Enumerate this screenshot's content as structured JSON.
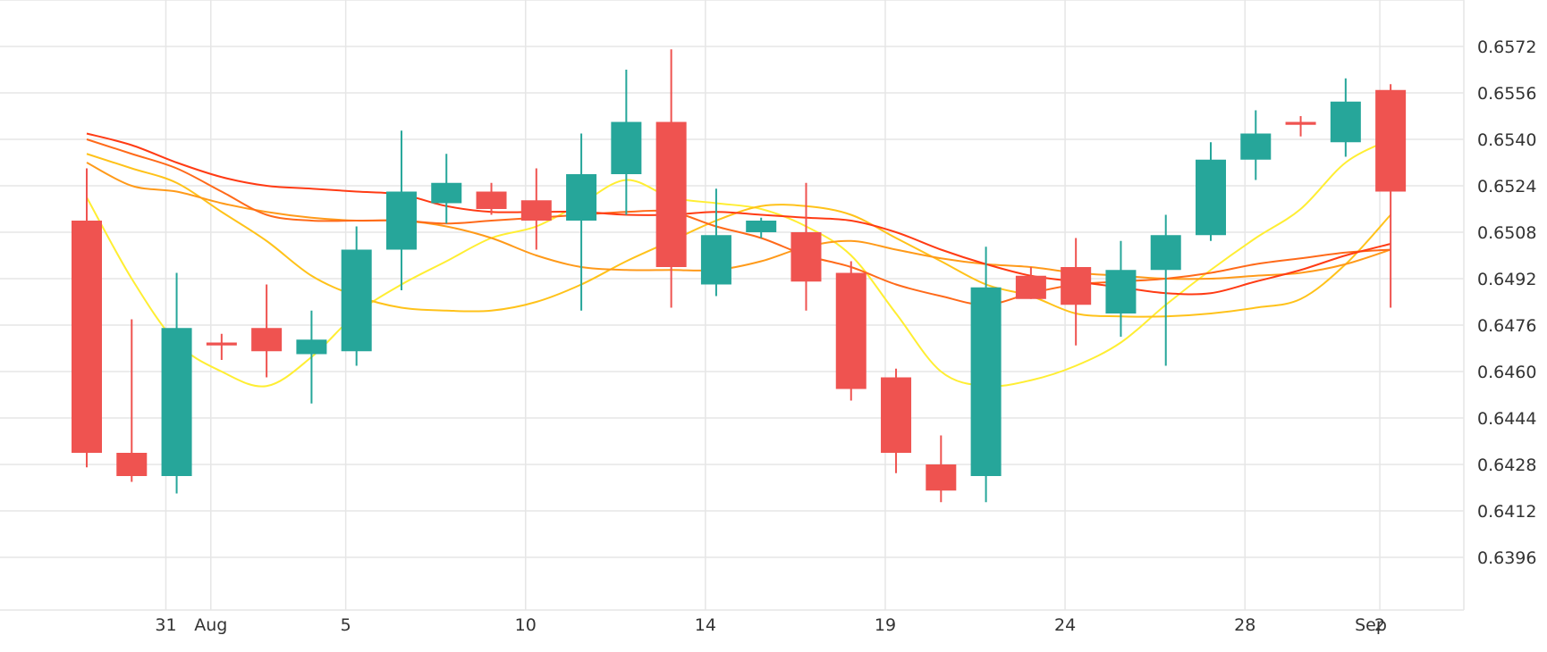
{
  "chart_data": {
    "type": "candlestick",
    "grid": true,
    "y_axis": {
      "position": "right",
      "range": [
        0.638,
        0.6588
      ],
      "ticks": [
        "0.6572",
        "0.6556",
        "0.6540",
        "0.6524",
        "0.6508",
        "0.6492",
        "0.6476",
        "0.6460",
        "0.6444",
        "0.6428",
        "0.6412",
        "0.6396"
      ]
    },
    "x_axis": {
      "labels": [
        {
          "text": "31",
          "index": 1
        },
        {
          "text": "Aug",
          "index": 2
        },
        {
          "text": "5",
          "index": 5
        },
        {
          "text": "10",
          "index": 9
        },
        {
          "text": "14",
          "index": 13
        },
        {
          "text": "19",
          "index": 17
        },
        {
          "text": "24",
          "index": 21
        },
        {
          "text": "28",
          "index": 25
        },
        {
          "text": "Sep",
          "index": 27.8
        },
        {
          "text": "2",
          "index": 28
        }
      ]
    },
    "colors": {
      "up": "#26a69a",
      "down": "#ef5350",
      "grid": "#e6e6e6",
      "text": "#333333"
    },
    "candles": [
      {
        "open": 0.6512,
        "high": 0.653,
        "low": 0.6427,
        "close": 0.6432
      },
      {
        "open": 0.6432,
        "high": 0.6478,
        "low": 0.6422,
        "close": 0.6424
      },
      {
        "open": 0.6424,
        "high": 0.6494,
        "low": 0.6418,
        "close": 0.6475
      },
      {
        "open": 0.647,
        "high": 0.6473,
        "low": 0.6464,
        "close": 0.6469
      },
      {
        "open": 0.6475,
        "high": 0.649,
        "low": 0.6458,
        "close": 0.6467
      },
      {
        "open": 0.6466,
        "high": 0.6481,
        "low": 0.6449,
        "close": 0.6471
      },
      {
        "open": 0.6467,
        "high": 0.651,
        "low": 0.6462,
        "close": 0.6502
      },
      {
        "open": 0.6502,
        "high": 0.6543,
        "low": 0.6488,
        "close": 0.6522
      },
      {
        "open": 0.6518,
        "high": 0.6535,
        "low": 0.6511,
        "close": 0.6525
      },
      {
        "open": 0.6522,
        "high": 0.6525,
        "low": 0.6514,
        "close": 0.6516
      },
      {
        "open": 0.6519,
        "high": 0.653,
        "low": 0.6502,
        "close": 0.6512
      },
      {
        "open": 0.6512,
        "high": 0.6542,
        "low": 0.6481,
        "close": 0.6528
      },
      {
        "open": 0.6528,
        "high": 0.6564,
        "low": 0.6514,
        "close": 0.6546
      },
      {
        "open": 0.6546,
        "high": 0.6571,
        "low": 0.6482,
        "close": 0.6496
      },
      {
        "open": 0.649,
        "high": 0.6523,
        "low": 0.6486,
        "close": 0.6507
      },
      {
        "open": 0.6508,
        "high": 0.6513,
        "low": 0.6506,
        "close": 0.6512
      },
      {
        "open": 0.6508,
        "high": 0.6525,
        "low": 0.6481,
        "close": 0.6491
      },
      {
        "open": 0.6494,
        "high": 0.6498,
        "low": 0.645,
        "close": 0.6454
      },
      {
        "open": 0.6458,
        "high": 0.6461,
        "low": 0.6425,
        "close": 0.6432
      },
      {
        "open": 0.6428,
        "high": 0.6438,
        "low": 0.6415,
        "close": 0.6419
      },
      {
        "open": 0.6424,
        "high": 0.6503,
        "low": 0.6415,
        "close": 0.6489
      },
      {
        "open": 0.6493,
        "high": 0.6496,
        "low": 0.6485,
        "close": 0.6485
      },
      {
        "open": 0.6496,
        "high": 0.6506,
        "low": 0.6469,
        "close": 0.6483
      },
      {
        "open": 0.648,
        "high": 0.6505,
        "low": 0.6472,
        "close": 0.6495
      },
      {
        "open": 0.6495,
        "high": 0.6514,
        "low": 0.6462,
        "close": 0.6507
      },
      {
        "open": 0.6507,
        "high": 0.6539,
        "low": 0.6505,
        "close": 0.6533
      },
      {
        "open": 0.6533,
        "high": 0.655,
        "low": 0.6526,
        "close": 0.6542
      },
      {
        "open": 0.6546,
        "high": 0.6548,
        "low": 0.6541,
        "close": 0.6545
      },
      {
        "open": 0.6539,
        "high": 0.6561,
        "low": 0.6534,
        "close": 0.6553
      },
      {
        "open": 0.6557,
        "high": 0.6559,
        "low": 0.6482,
        "close": 0.6522
      }
    ],
    "series": [
      {
        "color": "#ffee33",
        "values": [
          0.652,
          0.6492,
          0.647,
          0.646,
          0.6455,
          0.6465,
          0.648,
          0.649,
          0.6498,
          0.6506,
          0.651,
          0.6518,
          0.6526,
          0.652,
          0.6518,
          0.6516,
          0.651,
          0.65,
          0.648,
          0.646,
          0.6455,
          0.6457,
          0.6462,
          0.647,
          0.6483,
          0.6495,
          0.6506,
          0.6516,
          0.6532,
          0.654
        ]
      },
      {
        "color": "#ffc21a",
        "values": [
          0.6535,
          0.653,
          0.6525,
          0.6515,
          0.6505,
          0.6493,
          0.6486,
          0.6482,
          0.6481,
          0.6481,
          0.6484,
          0.649,
          0.6498,
          0.6505,
          0.6512,
          0.6517,
          0.6517,
          0.6514,
          0.6506,
          0.6498,
          0.649,
          0.6486,
          0.648,
          0.6479,
          0.6479,
          0.648,
          0.6482,
          0.6485,
          0.6497,
          0.6514
        ]
      },
      {
        "color": "#ff9a1a",
        "values": [
          0.6532,
          0.6524,
          0.6522,
          0.6518,
          0.6515,
          0.6513,
          0.6512,
          0.6512,
          0.651,
          0.6506,
          0.65,
          0.6496,
          0.6495,
          0.6495,
          0.6495,
          0.6498,
          0.6503,
          0.6505,
          0.6502,
          0.6499,
          0.6497,
          0.6496,
          0.6494,
          0.6493,
          0.6492,
          0.6492,
          0.6493,
          0.6494,
          0.6497,
          0.6502
        ]
      },
      {
        "color": "#ff6a1a",
        "values": [
          0.654,
          0.6535,
          0.653,
          0.6522,
          0.6514,
          0.6512,
          0.6512,
          0.6512,
          0.6511,
          0.6512,
          0.6513,
          0.6514,
          0.6515,
          0.6515,
          0.651,
          0.6506,
          0.65,
          0.6496,
          0.649,
          0.6486,
          0.6483,
          0.6487,
          0.649,
          0.6491,
          0.6492,
          0.6494,
          0.6497,
          0.6499,
          0.6501,
          0.6502
        ]
      },
      {
        "color": "#ff3b14",
        "values": [
          0.6542,
          0.6538,
          0.6532,
          0.6527,
          0.6524,
          0.6523,
          0.6522,
          0.6521,
          0.6517,
          0.6515,
          0.6515,
          0.6515,
          0.6514,
          0.6514,
          0.6515,
          0.6514,
          0.6513,
          0.6512,
          0.6508,
          0.6502,
          0.6497,
          0.6493,
          0.6491,
          0.6489,
          0.6487,
          0.6487,
          0.6491,
          0.6495,
          0.65,
          0.6504
        ]
      }
    ]
  }
}
